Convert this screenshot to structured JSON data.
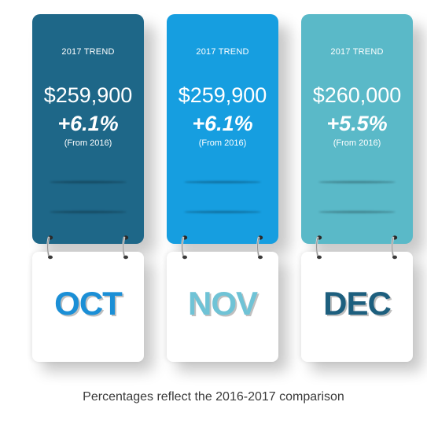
{
  "cards": [
    {
      "trend_label": "2017 TREND",
      "price": "$259,900",
      "change": "+6.1%",
      "from_label": "(From 2016)",
      "month": "OCT",
      "panel_color": "#1e6788",
      "month_color": "#1b8fd6"
    },
    {
      "trend_label": "2017 TREND",
      "price": "$259,900",
      "change": "+6.1%",
      "from_label": "(From 2016)",
      "month": "NOV",
      "panel_color": "#169ee0",
      "month_color": "#6fc3d6"
    },
    {
      "trend_label": "2017 TREND",
      "price": "$260,000",
      "change": "+5.5%",
      "from_label": "(From 2016)",
      "month": "DEC",
      "panel_color": "#5ab9c8",
      "month_color": "#1d5f7e"
    }
  ],
  "footer": "Percentages reflect the 2016-2017 comparison"
}
